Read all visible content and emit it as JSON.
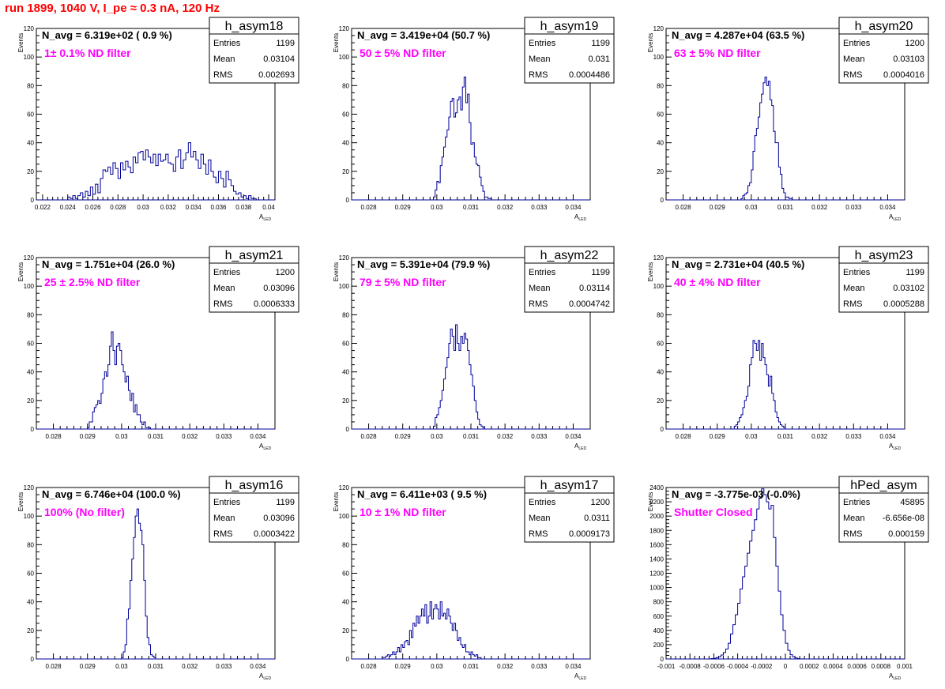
{
  "canvas_title": "run 1899,  1040 V, I_pe ≈ 0.3 nA, 120 Hz",
  "axis_label_y": "Events",
  "axis_label_x_main": "A",
  "axis_label_x_sub": "LED",
  "stats_labels": {
    "entries": "Entries",
    "mean": "Mean",
    "rms": "RMS"
  },
  "colors": {
    "histogram": "#000099",
    "annotation": "#ff00ff",
    "title": "#ff0000"
  },
  "chart_data": [
    {
      "type": "bar",
      "name": "h_asym18",
      "navg_text": "N_avg = 6.319e+02 ( 0.9 %)",
      "filter_text": "1± 0.1% ND filter",
      "stats": {
        "entries": "1199",
        "mean": "0.03104",
        "rms": "0.002693"
      },
      "xlim": [
        0.0215,
        0.0405
      ],
      "ylim": [
        0,
        120
      ],
      "xticks": [
        "0.022",
        "0.024",
        "0.026",
        "0.028",
        "0.03",
        "0.032",
        "0.034",
        "0.036",
        "0.038",
        "0.04"
      ],
      "yticks": [
        "0",
        "20",
        "40",
        "60",
        "80",
        "100",
        "120"
      ],
      "bin_start": 0.024,
      "bin_width": 0.0002,
      "values": [
        2,
        1,
        3,
        1,
        3,
        5,
        2,
        6,
        3,
        9,
        4,
        11,
        5,
        15,
        21,
        20,
        23,
        18,
        26,
        22,
        15,
        26,
        21,
        27,
        23,
        19,
        30,
        26,
        33,
        34,
        28,
        35,
        30,
        26,
        32,
        24,
        32,
        27,
        28,
        32,
        26,
        25,
        20,
        30,
        35,
        22,
        28,
        33,
        40,
        30,
        34,
        28,
        22,
        32,
        25,
        18,
        28,
        20,
        16,
        12,
        20,
        15,
        9,
        20,
        14,
        10,
        6,
        4,
        5,
        2,
        3,
        1,
        3,
        1,
        1,
        0,
        0,
        0,
        0,
        0
      ]
    },
    {
      "type": "bar",
      "name": "h_asym19",
      "navg_text": "N_avg = 3.419e+04 (50.7 %)",
      "filter_text": "50 ± 5% ND filter",
      "stats": {
        "entries": "1199",
        "mean": "0.031",
        "rms": "0.0004486"
      },
      "xlim": [
        0.0275,
        0.0345
      ],
      "ylim": [
        0,
        120
      ],
      "xticks": [
        "0.028",
        "0.029",
        "0.03",
        "0.031",
        "0.032",
        "0.033",
        "0.034"
      ],
      "yticks": [
        "0",
        "20",
        "40",
        "60",
        "80",
        "100",
        "120"
      ],
      "bin_start": 0.0299,
      "bin_width": 5e-05,
      "values": [
        2,
        7,
        13,
        12,
        24,
        30,
        37,
        44,
        49,
        58,
        69,
        71,
        58,
        61,
        70,
        72,
        63,
        79,
        86,
        68,
        74,
        54,
        39,
        40,
        30,
        25,
        24,
        16,
        10,
        6,
        2,
        2,
        1,
        1
      ]
    },
    {
      "type": "bar",
      "name": "h_asym20",
      "navg_text": "N_avg = 4.287e+04 (63.5 %)",
      "filter_text": "63 ± 5% ND filter",
      "stats": {
        "entries": "1200",
        "mean": "0.03103",
        "rms": "0.0004016"
      },
      "xlim": [
        0.0275,
        0.0345
      ],
      "ylim": [
        0,
        120
      ],
      "xticks": [
        "0.028",
        "0.029",
        "0.03",
        "0.031",
        "0.032",
        "0.033",
        "0.034"
      ],
      "yticks": [
        "0",
        "20",
        "40",
        "60",
        "80",
        "100",
        "120"
      ],
      "bin_start": 0.0297,
      "bin_width": 5e-05,
      "values": [
        1,
        3,
        4,
        5,
        10,
        12,
        21,
        34,
        45,
        50,
        58,
        68,
        74,
        82,
        86,
        80,
        83,
        70,
        66,
        48,
        40,
        40,
        23,
        18,
        8,
        5,
        2,
        2,
        1,
        1
      ]
    },
    {
      "type": "bar",
      "name": "h_asym21",
      "navg_text": "N_avg = 1.751e+04 (26.0 %)",
      "filter_text": "25 ± 2.5% ND filter",
      "stats": {
        "entries": "1200",
        "mean": "0.03096",
        "rms": "0.0006333"
      },
      "xlim": [
        0.0275,
        0.0345
      ],
      "ylim": [
        0,
        120
      ],
      "xticks": [
        "0.028",
        "0.029",
        "0.03",
        "0.031",
        "0.032",
        "0.033",
        "0.034"
      ],
      "yticks": [
        "0",
        "20",
        "40",
        "60",
        "80",
        "100",
        "120"
      ],
      "bin_start": 0.029,
      "bin_width": 5e-05,
      "values": [
        1,
        5,
        5,
        12,
        15,
        17,
        20,
        18,
        25,
        35,
        40,
        37,
        45,
        58,
        68,
        55,
        45,
        58,
        60,
        55,
        45,
        40,
        33,
        37,
        27,
        20,
        25,
        12,
        17,
        10,
        10,
        5,
        3,
        5,
        1,
        1,
        1
      ]
    },
    {
      "type": "bar",
      "name": "h_asym22",
      "navg_text": "N_avg = 5.391e+04 (79.9 %)",
      "filter_text": "79 ± 5% ND filter",
      "stats": {
        "entries": "1199",
        "mean": "0.03114",
        "rms": "0.0004742"
      },
      "xlim": [
        0.0275,
        0.0345
      ],
      "ylim": [
        0,
        120
      ],
      "xticks": [
        "0.028",
        "0.029",
        "0.03",
        "0.031",
        "0.032",
        "0.033",
        "0.034"
      ],
      "yticks": [
        "0",
        "20",
        "40",
        "60",
        "80",
        "100",
        "120"
      ],
      "bin_start": 0.0299,
      "bin_width": 5e-05,
      "values": [
        2,
        8,
        10,
        15,
        20,
        27,
        35,
        43,
        50,
        60,
        70,
        65,
        55,
        73,
        60,
        55,
        65,
        60,
        67,
        63,
        55,
        45,
        38,
        30,
        20,
        12,
        7,
        3,
        2,
        1
      ]
    },
    {
      "type": "bar",
      "name": "h_asym23",
      "navg_text": "N_avg = 2.731e+04 (40.5 %)",
      "filter_text": "40 ± 4% ND filter",
      "stats": {
        "entries": "1199",
        "mean": "0.03102",
        "rms": "0.0005288"
      },
      "xlim": [
        0.0275,
        0.0345
      ],
      "ylim": [
        0,
        120
      ],
      "xticks": [
        "0.028",
        "0.029",
        "0.03",
        "0.031",
        "0.032",
        "0.033",
        "0.034"
      ],
      "yticks": [
        "0",
        "20",
        "40",
        "60",
        "80",
        "100",
        "120"
      ],
      "bin_start": 0.0295,
      "bin_width": 5e-05,
      "values": [
        2,
        3,
        5,
        8,
        10,
        15,
        20,
        23,
        30,
        45,
        50,
        62,
        60,
        55,
        62,
        48,
        60,
        50,
        45,
        38,
        30,
        37,
        25,
        20,
        12,
        8,
        5,
        3,
        2,
        1
      ]
    },
    {
      "type": "bar",
      "name": "h_asym16",
      "navg_text": "N_avg = 6.746e+04 (100.0 %)",
      "filter_text": "100% (No filter)",
      "stats": {
        "entries": "1199",
        "mean": "0.03096",
        "rms": "0.0003422"
      },
      "xlim": [
        0.0275,
        0.0345
      ],
      "ylim": [
        0,
        120
      ],
      "xticks": [
        "0.028",
        "0.029",
        "0.03",
        "0.031",
        "0.032",
        "0.033",
        "0.034"
      ],
      "yticks": [
        "0",
        "20",
        "40",
        "60",
        "80",
        "100",
        "120"
      ],
      "bin_start": 0.03,
      "bin_width": 5e-05,
      "values": [
        1,
        5,
        10,
        28,
        35,
        55,
        70,
        85,
        100,
        105,
        95,
        90,
        80,
        55,
        30,
        15,
        10,
        3,
        2,
        1
      ]
    },
    {
      "type": "bar",
      "name": "h_asym17",
      "navg_text": "N_avg = 6.411e+03 ( 9.5 %)",
      "filter_text": "10 ± 1% ND filter",
      "stats": {
        "entries": "1200",
        "mean": "0.0311",
        "rms": "0.0009173"
      },
      "xlim": [
        0.0275,
        0.0345
      ],
      "ylim": [
        0,
        120
      ],
      "xticks": [
        "0.028",
        "0.029",
        "0.03",
        "0.031",
        "0.032",
        "0.033",
        "0.034"
      ],
      "yticks": [
        "0",
        "20",
        "40",
        "60",
        "80",
        "100",
        "120"
      ],
      "bin_start": 0.0284,
      "bin_width": 5e-05,
      "values": [
        1,
        1,
        2,
        3,
        2,
        3,
        5,
        3,
        5,
        8,
        5,
        10,
        8,
        12,
        13,
        10,
        20,
        15,
        25,
        23,
        30,
        25,
        30,
        35,
        30,
        38,
        25,
        30,
        40,
        28,
        35,
        38,
        35,
        28,
        40,
        30,
        32,
        28,
        35,
        30,
        25,
        20,
        25,
        20,
        13,
        15,
        10,
        8,
        10,
        5,
        5,
        3,
        5,
        3,
        2,
        3,
        1,
        1
      ]
    },
    {
      "type": "bar",
      "name": "hPed_asym",
      "navg_text": "N_avg = -3.775e-03 (-0.0%)",
      "filter_text": "Shutter Closed",
      "stats": {
        "entries": "45895",
        "mean": "-6.656e-08",
        "rms": "0.000159"
      },
      "xlim": [
        -0.001,
        0.001
      ],
      "ylim": [
        0,
        2400
      ],
      "xticks": [
        "-0.001",
        "-0.0008",
        "-0.0006",
        "-0.0004",
        "-0.0002",
        "0",
        "0.0002",
        "0.0004",
        "0.0006",
        "0.0008",
        "0.001"
      ],
      "yticks": [
        "0",
        "200",
        "400",
        "600",
        "800",
        "1000",
        "1200",
        "1400",
        "1600",
        "1800",
        "2000",
        "2200",
        "2400"
      ],
      "bin_start": -0.00064,
      "bin_width": 2e-05,
      "values": [
        2,
        5,
        10,
        20,
        30,
        55,
        90,
        140,
        220,
        350,
        480,
        620,
        780,
        980,
        1150,
        1300,
        1480,
        1650,
        1800,
        1950,
        2100,
        2250,
        2380,
        2300,
        2200,
        2100,
        2150,
        1700,
        1300,
        950,
        620,
        400,
        220,
        120,
        60,
        30,
        15,
        5,
        2,
        1
      ]
    }
  ]
}
